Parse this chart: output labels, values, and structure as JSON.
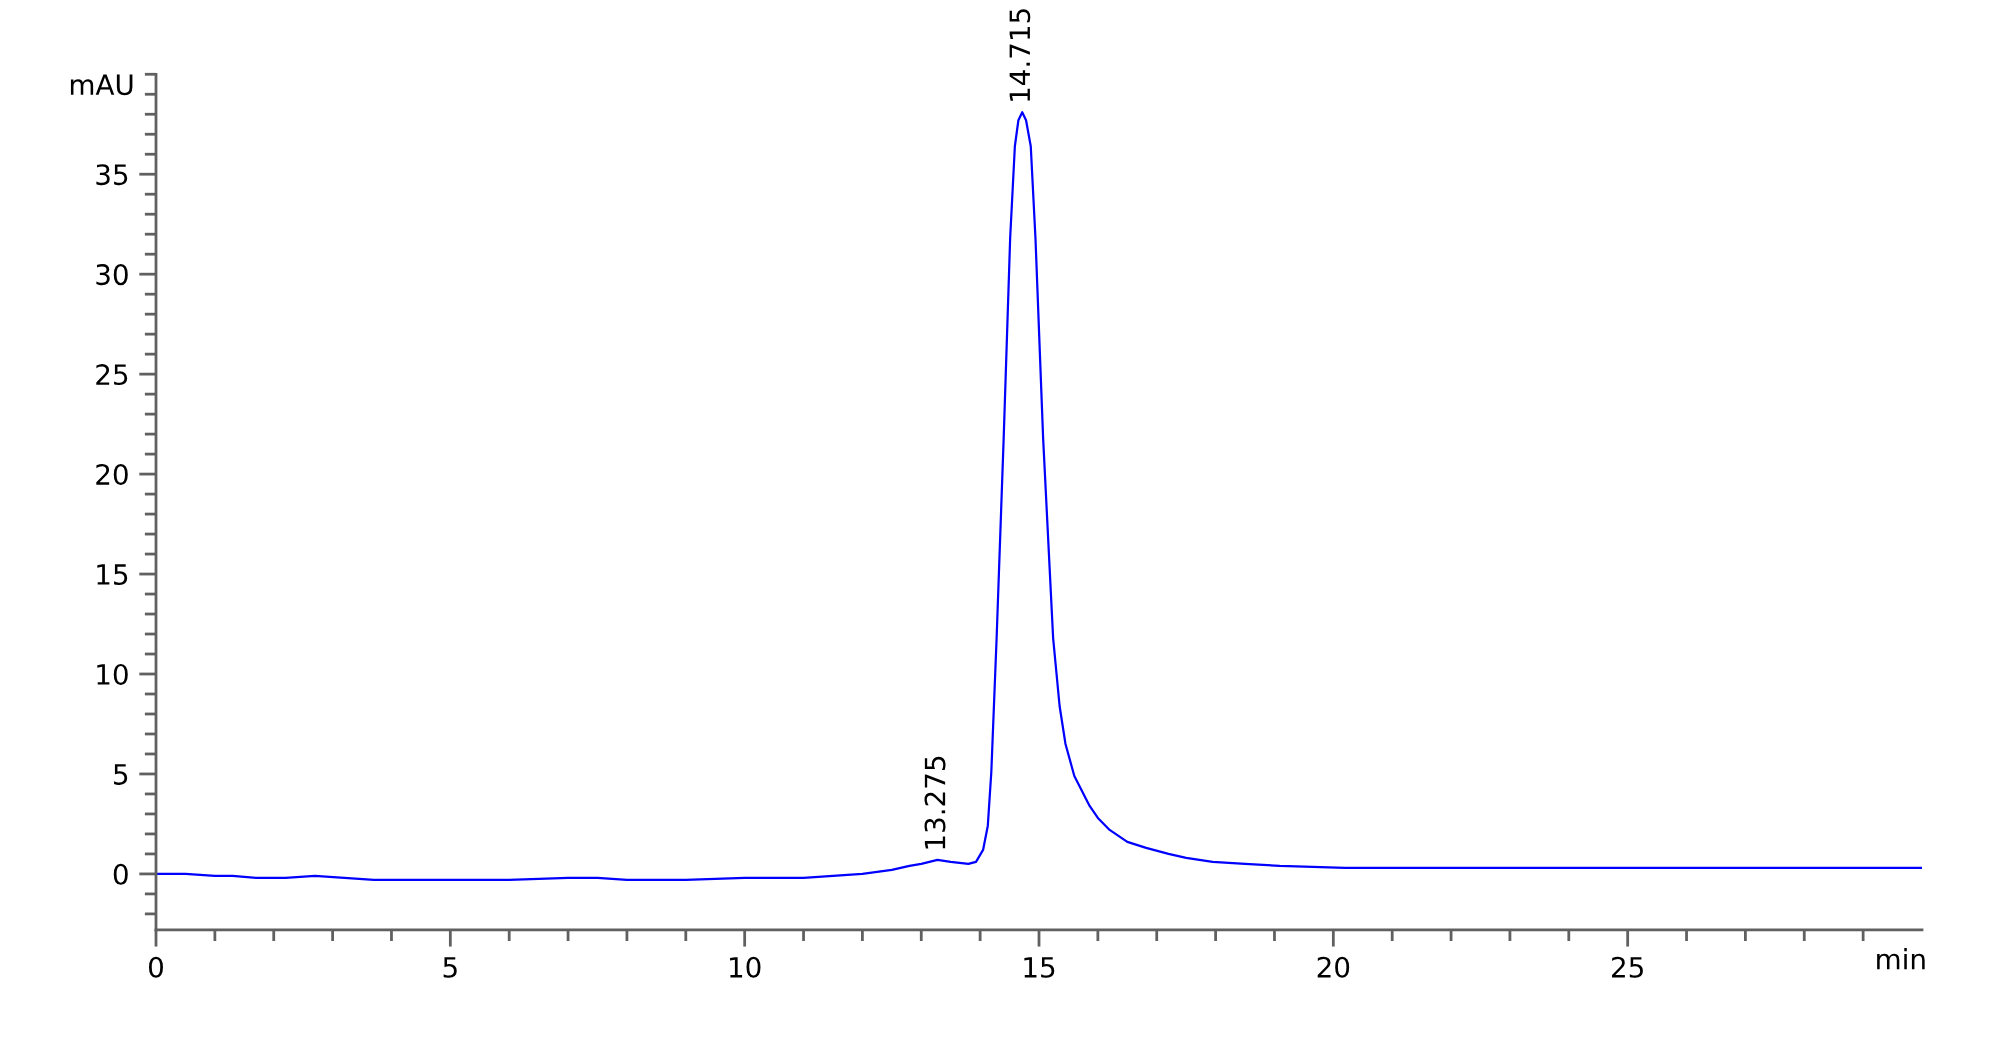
{
  "chart_data": {
    "type": "line",
    "xlabel": "min",
    "ylabel": "mAU",
    "x": [
      0,
      0.5,
      1.0,
      1.3,
      1.7,
      2.2,
      2.7,
      3.2,
      3.7,
      4.5,
      5.0,
      6.0,
      7.0,
      7.5,
      8.0,
      9.0,
      10.0,
      10.5,
      11.0,
      11.5,
      12.0,
      12.5,
      12.8,
      13.0,
      13.275,
      13.5,
      13.8,
      13.93,
      14.05,
      14.13,
      14.19,
      14.28,
      14.4,
      14.51,
      14.59,
      14.65,
      14.715,
      14.78,
      14.86,
      14.94,
      15.07,
      15.24,
      15.35,
      15.45,
      15.6,
      15.86,
      16.0,
      16.2,
      16.5,
      16.82,
      17.2,
      17.5,
      17.95,
      18.5,
      19.09,
      20.2,
      22.0,
      25.0,
      30.0
    ],
    "series": [
      {
        "color": "#0000ff",
        "values": [
          0.0,
          0.0,
          -0.1,
          -0.1,
          -0.2,
          -0.2,
          -0.1,
          -0.2,
          -0.3,
          -0.3,
          -0.3,
          -0.3,
          -0.2,
          -0.2,
          -0.3,
          -0.3,
          -0.2,
          -0.2,
          -0.2,
          -0.1,
          0.0,
          0.2,
          0.4,
          0.5,
          0.7,
          0.6,
          0.5,
          0.6,
          1.2,
          2.4,
          5.1,
          11.8,
          21.8,
          31.8,
          36.4,
          37.7,
          38.1,
          37.7,
          36.4,
          31.8,
          21.8,
          11.8,
          8.4,
          6.5,
          4.9,
          3.4,
          2.8,
          2.2,
          1.6,
          1.3,
          1.0,
          0.8,
          0.6,
          0.5,
          0.4,
          0.3,
          0.3,
          0.3,
          0.3
        ]
      }
    ],
    "xlim": [
      0,
      30
    ],
    "ylim": [
      -2.8,
      40
    ],
    "xticks": [
      0,
      {
        "value": 1,
        "label": null
      },
      {
        "value": 2,
        "label": null
      },
      {
        "value": 3,
        "label": null
      },
      {
        "value": 4,
        "label": null
      },
      5,
      {
        "value": 6,
        "label": null
      },
      {
        "value": 7,
        "label": null
      },
      {
        "value": 8,
        "label": null
      },
      {
        "value": 9,
        "label": null
      },
      10,
      {
        "value": 11,
        "label": null
      },
      {
        "value": 12,
        "label": null
      },
      {
        "value": 13,
        "label": null
      },
      {
        "value": 14,
        "label": null
      },
      15,
      {
        "value": 16,
        "label": null
      },
      {
        "value": 17,
        "label": null
      },
      {
        "value": 18,
        "label": null
      },
      {
        "value": 19,
        "label": null
      },
      20,
      {
        "value": 21,
        "label": null
      },
      {
        "value": 22,
        "label": null
      },
      {
        "value": 23,
        "label": null
      },
      {
        "value": 24,
        "label": null
      },
      25,
      {
        "value": 26,
        "label": null
      },
      {
        "value": 27,
        "label": null
      },
      {
        "value": 28,
        "label": null
      },
      {
        "value": 29,
        "label": null
      }
    ],
    "yticks": [
      {
        "value": -2,
        "label": null
      },
      {
        "value": -1,
        "label": null
      },
      0,
      {
        "value": 1,
        "label": null
      },
      {
        "value": 2,
        "label": null
      },
      {
        "value": 3,
        "label": null
      },
      {
        "value": 4,
        "label": null
      },
      5,
      {
        "value": 6,
        "label": null
      },
      {
        "value": 7,
        "label": null
      },
      {
        "value": 8,
        "label": null
      },
      {
        "value": 9,
        "label": null
      },
      10,
      {
        "value": 11,
        "label": null
      },
      {
        "value": 12,
        "label": null
      },
      {
        "value": 13,
        "label": null
      },
      {
        "value": 14,
        "label": null
      },
      15,
      {
        "value": 16,
        "label": null
      },
      {
        "value": 17,
        "label": null
      },
      {
        "value": 18,
        "label": null
      },
      {
        "value": 19,
        "label": null
      },
      20,
      {
        "value": 21,
        "label": null
      },
      {
        "value": 22,
        "label": null
      },
      {
        "value": 23,
        "label": null
      },
      {
        "value": 24,
        "label": null
      },
      25,
      {
        "value": 26,
        "label": null
      },
      {
        "value": 27,
        "label": null
      },
      {
        "value": 28,
        "label": null
      },
      {
        "value": 29,
        "label": null
      },
      30,
      {
        "value": 31,
        "label": null
      },
      {
        "value": 32,
        "label": null
      },
      {
        "value": 33,
        "label": null
      },
      {
        "value": 34,
        "label": null
      },
      35,
      {
        "value": 36,
        "label": null
      },
      {
        "value": 37,
        "label": null
      },
      {
        "value": 38,
        "label": null
      },
      {
        "value": 39,
        "label": null
      },
      {
        "value": 40,
        "label": null
      }
    ],
    "annotations": [
      {
        "text": "13.275",
        "x": 13.275,
        "y": 0.7
      },
      {
        "text": "14.715",
        "x": 14.715,
        "y": 38.1
      }
    ]
  }
}
